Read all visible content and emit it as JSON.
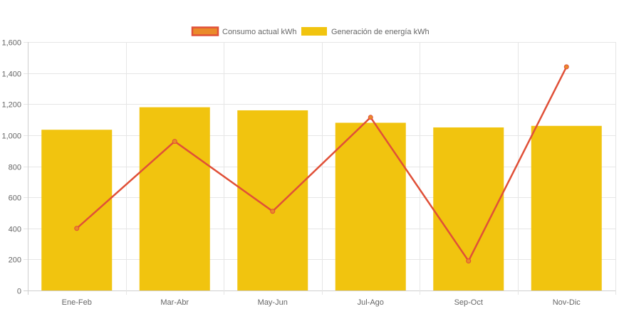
{
  "chart_data": {
    "type": "bar",
    "categories": [
      "Ene-Feb",
      "Mar-Abr",
      "May-Jun",
      "Jul-Ago",
      "Sep-Oct",
      "Nov-Dic"
    ],
    "series": [
      {
        "name": "Consumo actual kWh",
        "type": "line",
        "values": [
          400,
          960,
          510,
          1115,
          190,
          1440
        ],
        "color": "#e05038",
        "legend_fill": "#ea8a2a"
      },
      {
        "name": "Generación de energía kWh",
        "type": "bar",
        "values": [
          1035,
          1180,
          1160,
          1080,
          1050,
          1060
        ],
        "color": "#f1c40f"
      }
    ],
    "yticks": [
      "0",
      "200",
      "400",
      "600",
      "800",
      "1,000",
      "1,200",
      "1,400",
      "1,600"
    ],
    "ylim": [
      0,
      1600
    ],
    "grid": true,
    "legend_position": "top"
  }
}
